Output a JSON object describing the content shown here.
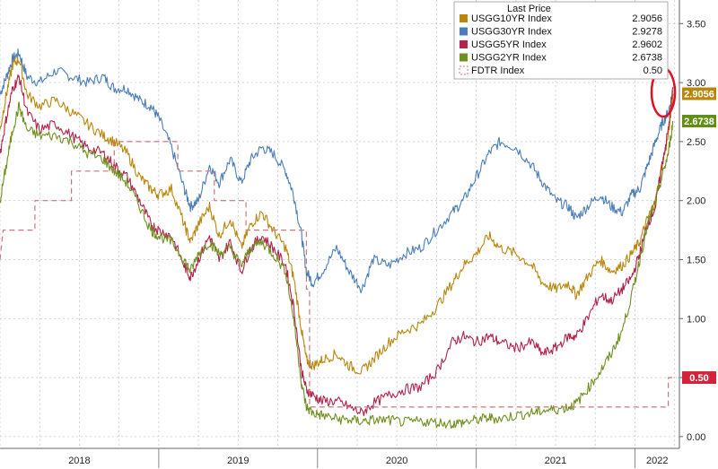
{
  "chart_data": {
    "type": "line",
    "title": "",
    "xlabel": "",
    "ylabel": "",
    "ylim": [
      -0.1,
      3.7
    ],
    "xlim": [
      2018.0,
      2022.28
    ],
    "grid": true,
    "x_ticks": [
      "2018",
      "2019",
      "2020",
      "2021",
      "2022"
    ],
    "y_ticks": [
      "0.00",
      "0.50",
      "1.00",
      "1.50",
      "2.00",
      "2.50",
      "3.00",
      "3.50"
    ],
    "legend": {
      "title": "Last Price",
      "position": "top-right",
      "entries": [
        {
          "name": "USGG10YR Index",
          "value": "2.9056",
          "color": "#b8860b"
        },
        {
          "name": "USGG30YR Index",
          "value": "2.9278",
          "color": "#4a7db8"
        },
        {
          "name": "USGG5YR Index",
          "value": "2.9602",
          "color": "#b2224a"
        },
        {
          "name": "USGG2YR Index",
          "value": "2.6738",
          "color": "#6f8f1e"
        },
        {
          "name": "FDTR Index",
          "value": "0.50",
          "color": "#c9777f"
        }
      ]
    },
    "last_value_tags": [
      {
        "label": "2.9056",
        "value": 2.9056,
        "color": "#b8860b"
      },
      {
        "label": "2.6738",
        "value": 2.6738,
        "color": "#5f8e12"
      },
      {
        "label": "0.50",
        "value": 0.5,
        "color": "#d2233a"
      }
    ],
    "series": [
      {
        "name": "USGG30YR Index",
        "color": "#4a7db8",
        "points": [
          [
            2018.0,
            2.9
          ],
          [
            2018.04,
            3.05
          ],
          [
            2018.08,
            3.2
          ],
          [
            2018.12,
            3.25
          ],
          [
            2018.17,
            3.05
          ],
          [
            2018.25,
            3.0
          ],
          [
            2018.35,
            3.1
          ],
          [
            2018.45,
            3.05
          ],
          [
            2018.55,
            3.0
          ],
          [
            2018.65,
            3.05
          ],
          [
            2018.72,
            2.95
          ],
          [
            2018.8,
            2.95
          ],
          [
            2018.88,
            2.85
          ],
          [
            2018.95,
            2.8
          ],
          [
            2019.0,
            2.7
          ],
          [
            2019.08,
            2.45
          ],
          [
            2019.16,
            2.1
          ],
          [
            2019.2,
            1.95
          ],
          [
            2019.25,
            2.0
          ],
          [
            2019.32,
            2.3
          ],
          [
            2019.38,
            2.15
          ],
          [
            2019.45,
            2.35
          ],
          [
            2019.52,
            2.15
          ],
          [
            2019.58,
            2.35
          ],
          [
            2019.65,
            2.45
          ],
          [
            2019.72,
            2.4
          ],
          [
            2019.8,
            2.25
          ],
          [
            2019.85,
            2.05
          ],
          [
            2019.9,
            1.7
          ],
          [
            2019.93,
            1.4
          ],
          [
            2019.97,
            1.3
          ],
          [
            2020.03,
            1.4
          ],
          [
            2020.12,
            1.6
          ],
          [
            2020.2,
            1.4
          ],
          [
            2020.28,
            1.25
          ],
          [
            2020.35,
            1.5
          ],
          [
            2020.45,
            1.45
          ],
          [
            2020.55,
            1.55
          ],
          [
            2020.65,
            1.6
          ],
          [
            2020.75,
            1.75
          ],
          [
            2020.85,
            1.9
          ],
          [
            2020.92,
            2.0
          ],
          [
            2021.0,
            2.2
          ],
          [
            2021.08,
            2.4
          ],
          [
            2021.15,
            2.5
          ],
          [
            2021.25,
            2.45
          ],
          [
            2021.35,
            2.3
          ],
          [
            2021.42,
            2.15
          ],
          [
            2021.5,
            2.0
          ],
          [
            2021.58,
            1.95
          ],
          [
            2021.63,
            1.85
          ],
          [
            2021.7,
            1.95
          ],
          [
            2021.78,
            2.05
          ],
          [
            2021.85,
            1.95
          ],
          [
            2021.92,
            1.9
          ],
          [
            2021.98,
            2.05
          ],
          [
            2022.03,
            2.1
          ],
          [
            2022.08,
            2.3
          ],
          [
            2022.13,
            2.5
          ],
          [
            2022.17,
            2.65
          ],
          [
            2022.21,
            2.75
          ],
          [
            2022.24,
            2.9278
          ]
        ]
      },
      {
        "name": "USGG10YR Index",
        "color": "#b8860b",
        "points": [
          [
            2018.0,
            2.6
          ],
          [
            2018.04,
            2.9
          ],
          [
            2018.08,
            3.15
          ],
          [
            2018.12,
            3.2
          ],
          [
            2018.17,
            2.9
          ],
          [
            2018.25,
            2.8
          ],
          [
            2018.35,
            2.85
          ],
          [
            2018.45,
            2.75
          ],
          [
            2018.55,
            2.65
          ],
          [
            2018.65,
            2.55
          ],
          [
            2018.72,
            2.5
          ],
          [
            2018.8,
            2.4
          ],
          [
            2018.88,
            2.2
          ],
          [
            2018.95,
            2.1
          ],
          [
            2019.0,
            2.05
          ],
          [
            2019.08,
            2.1
          ],
          [
            2019.16,
            1.8
          ],
          [
            2019.2,
            1.65
          ],
          [
            2019.25,
            1.8
          ],
          [
            2019.32,
            1.95
          ],
          [
            2019.38,
            1.7
          ],
          [
            2019.45,
            1.85
          ],
          [
            2019.52,
            1.6
          ],
          [
            2019.58,
            1.8
          ],
          [
            2019.65,
            1.9
          ],
          [
            2019.72,
            1.75
          ],
          [
            2019.8,
            1.6
          ],
          [
            2019.85,
            1.35
          ],
          [
            2019.9,
            0.9
          ],
          [
            2019.93,
            0.65
          ],
          [
            2019.97,
            0.6
          ],
          [
            2020.03,
            0.65
          ],
          [
            2020.12,
            0.7
          ],
          [
            2020.2,
            0.6
          ],
          [
            2020.28,
            0.55
          ],
          [
            2020.35,
            0.65
          ],
          [
            2020.45,
            0.8
          ],
          [
            2020.55,
            0.9
          ],
          [
            2020.65,
            0.95
          ],
          [
            2020.75,
            1.1
          ],
          [
            2020.85,
            1.3
          ],
          [
            2020.92,
            1.45
          ],
          [
            2021.0,
            1.55
          ],
          [
            2021.08,
            1.7
          ],
          [
            2021.15,
            1.6
          ],
          [
            2021.25,
            1.55
          ],
          [
            2021.35,
            1.45
          ],
          [
            2021.42,
            1.3
          ],
          [
            2021.5,
            1.25
          ],
          [
            2021.58,
            1.3
          ],
          [
            2021.63,
            1.2
          ],
          [
            2021.7,
            1.35
          ],
          [
            2021.78,
            1.5
          ],
          [
            2021.85,
            1.4
          ],
          [
            2021.92,
            1.45
          ],
          [
            2021.98,
            1.55
          ],
          [
            2022.03,
            1.65
          ],
          [
            2022.08,
            1.85
          ],
          [
            2022.13,
            2.0
          ],
          [
            2022.17,
            2.3
          ],
          [
            2022.21,
            2.55
          ],
          [
            2022.24,
            2.9056
          ]
        ]
      },
      {
        "name": "USGG5YR Index",
        "color": "#b2224a",
        "points": [
          [
            2018.0,
            2.4
          ],
          [
            2018.04,
            2.7
          ],
          [
            2018.08,
            2.95
          ],
          [
            2018.12,
            3.05
          ],
          [
            2018.17,
            2.75
          ],
          [
            2018.25,
            2.6
          ],
          [
            2018.35,
            2.65
          ],
          [
            2018.45,
            2.55
          ],
          [
            2018.55,
            2.45
          ],
          [
            2018.65,
            2.4
          ],
          [
            2018.72,
            2.3
          ],
          [
            2018.8,
            2.2
          ],
          [
            2018.88,
            2.0
          ],
          [
            2018.95,
            1.8
          ],
          [
            2019.0,
            1.75
          ],
          [
            2019.08,
            1.7
          ],
          [
            2019.16,
            1.45
          ],
          [
            2019.2,
            1.35
          ],
          [
            2019.25,
            1.5
          ],
          [
            2019.32,
            1.7
          ],
          [
            2019.38,
            1.5
          ],
          [
            2019.45,
            1.65
          ],
          [
            2019.52,
            1.4
          ],
          [
            2019.58,
            1.6
          ],
          [
            2019.65,
            1.7
          ],
          [
            2019.72,
            1.6
          ],
          [
            2019.8,
            1.45
          ],
          [
            2019.85,
            1.1
          ],
          [
            2019.9,
            0.55
          ],
          [
            2019.93,
            0.4
          ],
          [
            2019.97,
            0.35
          ],
          [
            2020.03,
            0.3
          ],
          [
            2020.12,
            0.3
          ],
          [
            2020.2,
            0.25
          ],
          [
            2020.28,
            0.2
          ],
          [
            2020.35,
            0.28
          ],
          [
            2020.45,
            0.35
          ],
          [
            2020.55,
            0.4
          ],
          [
            2020.65,
            0.42
          ],
          [
            2020.75,
            0.55
          ],
          [
            2020.85,
            0.8
          ],
          [
            2020.92,
            0.85
          ],
          [
            2021.0,
            0.8
          ],
          [
            2021.08,
            0.85
          ],
          [
            2021.15,
            0.8
          ],
          [
            2021.25,
            0.75
          ],
          [
            2021.35,
            0.8
          ],
          [
            2021.42,
            0.7
          ],
          [
            2021.5,
            0.75
          ],
          [
            2021.58,
            0.85
          ],
          [
            2021.63,
            0.85
          ],
          [
            2021.7,
            1.0
          ],
          [
            2021.78,
            1.2
          ],
          [
            2021.85,
            1.15
          ],
          [
            2021.92,
            1.25
          ],
          [
            2021.98,
            1.35
          ],
          [
            2022.03,
            1.55
          ],
          [
            2022.08,
            1.8
          ],
          [
            2022.13,
            1.95
          ],
          [
            2022.17,
            2.3
          ],
          [
            2022.21,
            2.6
          ],
          [
            2022.24,
            2.9602
          ]
        ]
      },
      {
        "name": "USGG2YR Index",
        "color": "#6f8f1e",
        "points": [
          [
            2018.0,
            2.0
          ],
          [
            2018.04,
            2.3
          ],
          [
            2018.08,
            2.6
          ],
          [
            2018.12,
            2.8
          ],
          [
            2018.17,
            2.6
          ],
          [
            2018.25,
            2.55
          ],
          [
            2018.35,
            2.55
          ],
          [
            2018.45,
            2.5
          ],
          [
            2018.55,
            2.4
          ],
          [
            2018.65,
            2.35
          ],
          [
            2018.72,
            2.25
          ],
          [
            2018.8,
            2.15
          ],
          [
            2018.88,
            1.95
          ],
          [
            2018.95,
            1.75
          ],
          [
            2019.0,
            1.7
          ],
          [
            2019.08,
            1.65
          ],
          [
            2019.16,
            1.5
          ],
          [
            2019.2,
            1.4
          ],
          [
            2019.25,
            1.55
          ],
          [
            2019.32,
            1.65
          ],
          [
            2019.38,
            1.55
          ],
          [
            2019.45,
            1.6
          ],
          [
            2019.52,
            1.45
          ],
          [
            2019.58,
            1.6
          ],
          [
            2019.65,
            1.65
          ],
          [
            2019.72,
            1.55
          ],
          [
            2019.8,
            1.4
          ],
          [
            2019.85,
            1.0
          ],
          [
            2019.9,
            0.45
          ],
          [
            2019.93,
            0.25
          ],
          [
            2019.97,
            0.2
          ],
          [
            2020.03,
            0.18
          ],
          [
            2020.12,
            0.15
          ],
          [
            2020.2,
            0.14
          ],
          [
            2020.28,
            0.13
          ],
          [
            2020.35,
            0.14
          ],
          [
            2020.45,
            0.14
          ],
          [
            2020.55,
            0.12
          ],
          [
            2020.65,
            0.13
          ],
          [
            2020.75,
            0.12
          ],
          [
            2020.85,
            0.11
          ],
          [
            2020.92,
            0.12
          ],
          [
            2021.0,
            0.14
          ],
          [
            2021.08,
            0.16
          ],
          [
            2021.15,
            0.15
          ],
          [
            2021.25,
            0.18
          ],
          [
            2021.35,
            0.2
          ],
          [
            2021.42,
            0.22
          ],
          [
            2021.5,
            0.23
          ],
          [
            2021.58,
            0.25
          ],
          [
            2021.63,
            0.28
          ],
          [
            2021.7,
            0.4
          ],
          [
            2021.78,
            0.55
          ],
          [
            2021.85,
            0.7
          ],
          [
            2021.92,
            0.9
          ],
          [
            2021.98,
            1.2
          ],
          [
            2022.03,
            1.5
          ],
          [
            2022.08,
            1.8
          ],
          [
            2022.13,
            2.0
          ],
          [
            2022.17,
            2.2
          ],
          [
            2022.21,
            2.4
          ],
          [
            2022.24,
            2.6738
          ]
        ]
      },
      {
        "name": "FDTR Index",
        "color": "#c9777f",
        "dashed": true,
        "step": true,
        "points": [
          [
            2018.0,
            1.5
          ],
          [
            2018.02,
            1.75
          ],
          [
            2018.22,
            1.75
          ],
          [
            2018.22,
            2.0
          ],
          [
            2018.45,
            2.0
          ],
          [
            2018.45,
            2.25
          ],
          [
            2018.72,
            2.25
          ],
          [
            2018.72,
            2.5
          ],
          [
            2019.12,
            2.5
          ],
          [
            2019.12,
            2.25
          ],
          [
            2019.35,
            2.25
          ],
          [
            2019.35,
            2.0
          ],
          [
            2019.55,
            2.0
          ],
          [
            2019.55,
            1.75
          ],
          [
            2019.93,
            1.75
          ],
          [
            2019.93,
            1.25
          ],
          [
            2019.95,
            1.25
          ],
          [
            2019.95,
            0.25
          ],
          [
            2022.21,
            0.25
          ],
          [
            2022.21,
            0.5
          ],
          [
            2022.26,
            0.5
          ]
        ]
      }
    ]
  }
}
